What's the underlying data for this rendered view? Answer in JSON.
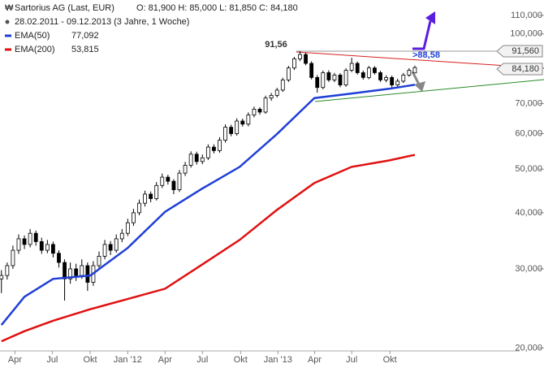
{
  "chart_data": {
    "type": "candlestick",
    "header": {
      "title": "Sartorius AG (Last, EUR)",
      "ohlc": "O: 81,900  H: 85,000  L: 81,850  C: 84,180",
      "range": "28.02.2011 - 09.12.2013 (3 Jahre, 1 Woche)"
    },
    "log_scale": true,
    "xlim": [
      -0.5,
      180.5
    ],
    "ylim": [
      19700,
      119000
    ],
    "xticks": [
      {
        "value": 4.7,
        "label": "Apr"
      },
      {
        "value": 17.7,
        "label": "Jul"
      },
      {
        "value": 30.9,
        "label": "Okt"
      },
      {
        "value": 44,
        "label": "Jan '12"
      },
      {
        "value": 57,
        "label": "Apr"
      },
      {
        "value": 70,
        "label": "Jul"
      },
      {
        "value": 83.3,
        "label": "Okt"
      },
      {
        "value": 96.3,
        "label": "Jan '13"
      },
      {
        "value": 109.1,
        "label": "Apr"
      },
      {
        "value": 122,
        "label": "Jul"
      },
      {
        "value": 135.3,
        "label": "Okt"
      }
    ],
    "yticks": [
      {
        "value": 20000,
        "label": "20,000"
      },
      {
        "value": 30000,
        "label": "30,000"
      },
      {
        "value": 40000,
        "label": "40,000"
      },
      {
        "value": 50000,
        "label": "50,000"
      },
      {
        "value": 60000,
        "label": "60,000"
      },
      {
        "value": 70000,
        "label": "70,000"
      },
      {
        "value": 100000,
        "label": "100,000"
      },
      {
        "value": 110000,
        "label": "110,000"
      }
    ],
    "candle_up_color": "#ffffff",
    "candle_down_color": "#000000",
    "x": [
      0,
      2,
      4,
      6,
      8,
      10,
      12,
      14,
      16,
      18,
      20,
      22,
      24,
      26,
      28,
      30,
      32,
      34,
      36,
      38,
      40,
      42,
      44,
      46,
      48,
      50,
      52,
      54,
      56,
      58,
      60,
      62,
      64,
      66,
      68,
      70,
      72,
      74,
      76,
      78,
      80,
      82,
      84,
      86,
      88,
      90,
      92,
      94,
      96,
      98,
      100,
      102,
      104,
      106,
      108,
      110,
      112,
      114,
      116,
      118,
      120,
      122,
      124,
      126,
      128,
      130,
      132,
      134,
      136,
      138,
      140,
      142,
      144
    ],
    "candles": [
      [
        28500,
        29800,
        26500,
        29000
      ],
      [
        29000,
        31000,
        28400,
        30500
      ],
      [
        30500,
        33800,
        30000,
        33000
      ],
      [
        33000,
        35800,
        32400,
        35000
      ],
      [
        35000,
        35600,
        33200,
        34000
      ],
      [
        34000,
        36800,
        33500,
        36000
      ],
      [
        36000,
        36500,
        33800,
        34500
      ],
      [
        34500,
        35200,
        32400,
        33000
      ],
      [
        33000,
        34800,
        32500,
        34000
      ],
      [
        34000,
        34500,
        31800,
        32500
      ],
      [
        32500,
        33000,
        30200,
        31000
      ],
      [
        31000,
        31500,
        25500,
        28500
      ],
      [
        28500,
        31000,
        27800,
        30000
      ],
      [
        30000,
        30800,
        28200,
        29000
      ],
      [
        29000,
        31500,
        28500,
        30500
      ],
      [
        30500,
        31000,
        26800,
        28000
      ],
      [
        28000,
        31200,
        27500,
        30500
      ],
      [
        30500,
        32800,
        30000,
        32000
      ],
      [
        32000,
        34800,
        31500,
        34000
      ],
      [
        34000,
        34600,
        32200,
        33000
      ],
      [
        33000,
        35800,
        32600,
        35000
      ],
      [
        35000,
        36800,
        34400,
        36000
      ],
      [
        36000,
        38800,
        35500,
        38000
      ],
      [
        38000,
        40800,
        37400,
        40000
      ],
      [
        40000,
        42800,
        39500,
        42000
      ],
      [
        42000,
        44800,
        41300,
        44000
      ],
      [
        44000,
        44600,
        42200,
        43000
      ],
      [
        43000,
        46800,
        42600,
        46000
      ],
      [
        46000,
        48900,
        45400,
        48000
      ],
      [
        48000,
        48600,
        46200,
        47000
      ],
      [
        47000,
        47500,
        44000,
        45000
      ],
      [
        45000,
        49800,
        44500,
        49000
      ],
      [
        49000,
        51900,
        48300,
        51000
      ],
      [
        51000,
        54800,
        50400,
        54000
      ],
      [
        54000,
        54700,
        51200,
        52000
      ],
      [
        52000,
        53900,
        51300,
        53000
      ],
      [
        53000,
        56800,
        52400,
        56000
      ],
      [
        56000,
        56800,
        54200,
        55000
      ],
      [
        55000,
        58900,
        54400,
        58000
      ],
      [
        58000,
        62900,
        57300,
        62000
      ],
      [
        62000,
        62800,
        59200,
        60000
      ],
      [
        60000,
        64900,
        59400,
        64000
      ],
      [
        64000,
        64800,
        62200,
        63000
      ],
      [
        63000,
        66900,
        62300,
        66000
      ],
      [
        66000,
        68900,
        65200,
        68000
      ],
      [
        68000,
        68700,
        66100,
        67000
      ],
      [
        67000,
        72900,
        66400,
        72000
      ],
      [
        72000,
        73900,
        71000,
        73000
      ],
      [
        73000,
        75900,
        72200,
        75000
      ],
      [
        75000,
        79900,
        74300,
        79000
      ],
      [
        79000,
        84900,
        78200,
        84000
      ],
      [
        84000,
        88900,
        83100,
        88000
      ],
      [
        88000,
        91560,
        87000,
        90000
      ],
      [
        90000,
        90800,
        85200,
        86000
      ],
      [
        86000,
        86900,
        79200,
        80000
      ],
      [
        80000,
        81000,
        74000,
        76000
      ],
      [
        76000,
        82900,
        75300,
        82000
      ],
      [
        82000,
        83000,
        78200,
        79000
      ],
      [
        79000,
        81900,
        78100,
        81000
      ],
      [
        81000,
        81800,
        76100,
        77000
      ],
      [
        77000,
        83900,
        76300,
        83000
      ],
      [
        83000,
        88500,
        82200,
        86000
      ],
      [
        86000,
        86800,
        81200,
        82000
      ],
      [
        82000,
        82900,
        79100,
        80000
      ],
      [
        80000,
        84900,
        79300,
        84000
      ],
      [
        84000,
        84800,
        81200,
        82000
      ],
      [
        82000,
        82800,
        78200,
        79000
      ],
      [
        79000,
        80900,
        78100,
        80000
      ],
      [
        80000,
        80800,
        75500,
        77000
      ],
      [
        77000,
        79500,
        76200,
        78500
      ],
      [
        78500,
        81900,
        77800,
        81000
      ],
      [
        81000,
        83900,
        80300,
        83000
      ],
      [
        81900,
        85000,
        81850,
        84180
      ]
    ],
    "series": [
      {
        "name": "EMA(50)",
        "color": "#1f3fd6",
        "last_label": "77,092",
        "x": [
          0,
          8,
          18,
          31,
          44,
          57,
          70,
          83,
          96,
          109,
          122,
          135,
          144
        ],
        "values": [
          22500,
          26000,
          28500,
          29000,
          33400,
          40200,
          45300,
          50600,
          59900,
          72000,
          73700,
          75500,
          77092
        ]
      },
      {
        "name": "EMA(200)",
        "color": "#e01010",
        "last_label": "53,815",
        "x": [
          0,
          8,
          18,
          31,
          44,
          57,
          70,
          83,
          96,
          109,
          122,
          135,
          144
        ],
        "values": [
          20700,
          21800,
          23000,
          24400,
          25700,
          27100,
          30700,
          34800,
          40600,
          46600,
          50600,
          52300,
          53815
        ]
      }
    ],
    "annotations": {
      "peak": "91,56",
      "target": ">88,58",
      "box_high": "91,560",
      "box_last": "84,180"
    }
  }
}
